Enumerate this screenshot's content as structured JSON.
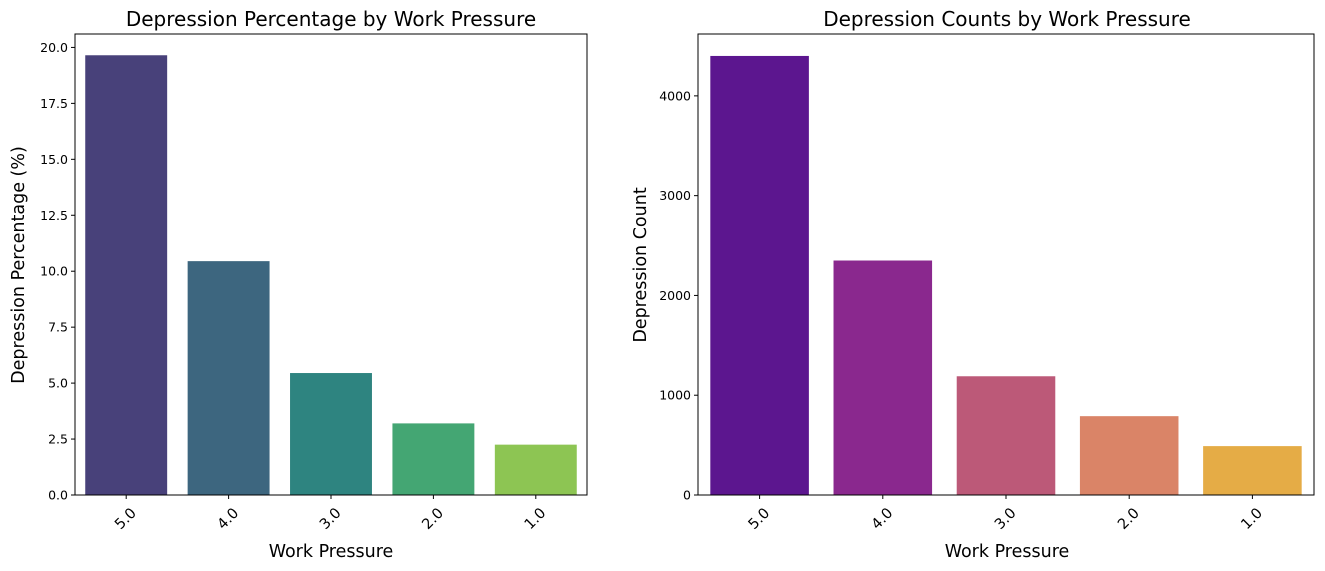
{
  "chart_data": [
    {
      "type": "bar",
      "title": "Depression Percentage by Work Pressure",
      "xlabel": "Work Pressure",
      "ylabel": "Depression Percentage (%)",
      "categories": [
        "5.0",
        "4.0",
        "3.0",
        "2.0",
        "1.0"
      ],
      "values": [
        19.65,
        10.45,
        5.45,
        3.2,
        2.25
      ],
      "ylim": [
        0,
        20.6
      ],
      "yticks": [
        "0.0",
        "2.5",
        "5.0",
        "7.5",
        "10.0",
        "12.5",
        "15.0",
        "17.5",
        "20.0"
      ],
      "colors": [
        "#48417a",
        "#3d667f",
        "#2e8480",
        "#44a673",
        "#8dc553"
      ],
      "grid": false,
      "legend": "none"
    },
    {
      "type": "bar",
      "title": "Depression Counts by Work Pressure",
      "xlabel": "Work Pressure",
      "ylabel": "Depression Count",
      "categories": [
        "5.0",
        "4.0",
        "3.0",
        "2.0",
        "1.0"
      ],
      "values": [
        4400,
        2350,
        1190,
        790,
        490
      ],
      "ylim": [
        0,
        4620
      ],
      "yticks": [
        "0",
        "1000",
        "2000",
        "3000",
        "4000"
      ],
      "colors": [
        "#5c168f",
        "#8a288e",
        "#bc5978",
        "#da8467",
        "#e5ac46"
      ],
      "grid": false,
      "legend": "none"
    }
  ]
}
